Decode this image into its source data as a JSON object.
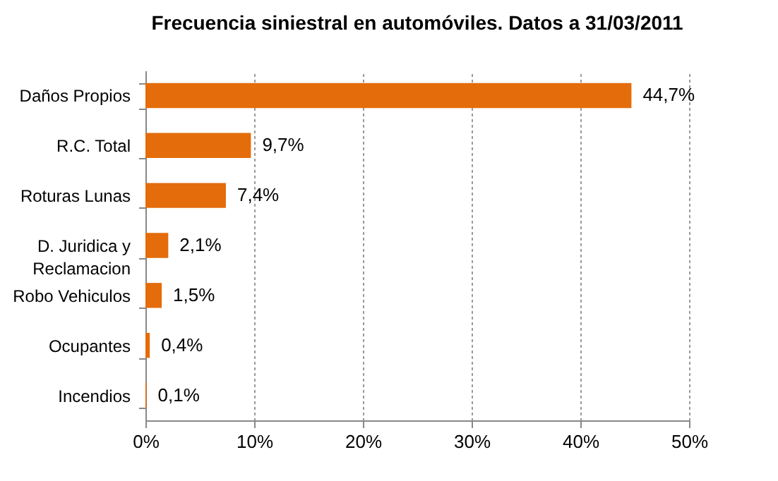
{
  "chart_data": {
    "type": "bar",
    "orientation": "horizontal",
    "title": "Frecuencia siniestral en automóviles. Datos a 31/03/2011",
    "categories": [
      "Daños Propios",
      "R.C. Total",
      "Roturas Lunas",
      "D. Juridica y Reclamacion",
      "Robo Vehiculos",
      "Ocupantes",
      "Incendios"
    ],
    "values": [
      44.7,
      9.7,
      7.4,
      2.1,
      1.5,
      0.4,
      0.1
    ],
    "value_labels": [
      "44,7%",
      "9,7%",
      "7,4%",
      "2,1%",
      "1,5%",
      "0,4%",
      "0,1%"
    ],
    "color": "#e46c0a",
    "xlim": [
      0,
      50
    ],
    "xticks": [
      {
        "value": 0,
        "label": "0%"
      },
      {
        "value": 10,
        "label": "10%"
      },
      {
        "value": 20,
        "label": "20%"
      },
      {
        "value": 30,
        "label": "30%"
      },
      {
        "value": 40,
        "label": "40%"
      },
      {
        "value": 50,
        "label": "50%"
      }
    ],
    "grid": "x"
  }
}
